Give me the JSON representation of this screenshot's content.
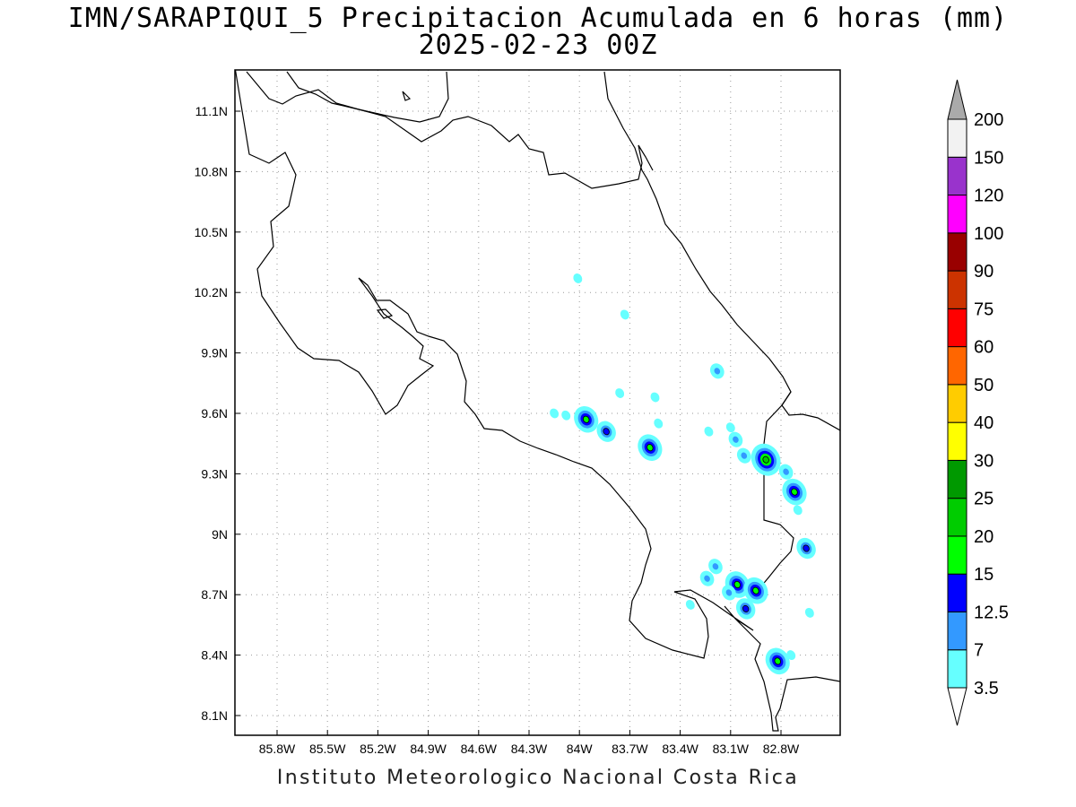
{
  "title": {
    "line1": "IMN/SARAPIQUI_5 Precipitacion Acumulada en 6 horas (mm)",
    "line2": "2025-02-23 00Z"
  },
  "footer": "Instituto Meteorologico Nacional Costa Rica",
  "map": {
    "lon_ticks": [
      "85.8W",
      "85.5W",
      "85.2W",
      "84.9W",
      "84.6W",
      "84.3W",
      "84W",
      "83.7W",
      "83.4W",
      "83.1W",
      "82.8W"
    ],
    "lat_ticks": [
      "11.1N",
      "10.8N",
      "10.5N",
      "10.2N",
      "9.9N",
      "9.6N",
      "9.3N",
      "9N",
      "8.7N",
      "8.4N",
      "8.1N"
    ],
    "gridlines": "dotted"
  },
  "colorbar": {
    "labels": [
      "3.5",
      "7",
      "12.5",
      "15",
      "20",
      "25",
      "30",
      "40",
      "50",
      "60",
      "75",
      "90",
      "100",
      "120",
      "150",
      "200"
    ],
    "colors": [
      "#ffffff",
      "#66ffff",
      "#3399ff",
      "#0000ff",
      "#00ff00",
      "#00cc00",
      "#009900",
      "#ffff00",
      "#ffcc00",
      "#ff6600",
      "#ff0000",
      "#cc3300",
      "#990000",
      "#ff00ff",
      "#9933cc",
      "#f2f2f2",
      "#aaaaaa"
    ]
  },
  "precip_cells": [
    {
      "lon": -84.01,
      "lat": 10.27,
      "level": 1
    },
    {
      "lon": -83.73,
      "lat": 10.09,
      "level": 1
    },
    {
      "lon": -83.76,
      "lat": 9.7,
      "level": 1
    },
    {
      "lon": -83.55,
      "lat": 9.68,
      "level": 1
    },
    {
      "lon": -84.15,
      "lat": 9.6,
      "level": 1
    },
    {
      "lon": -84.08,
      "lat": 9.59,
      "level": 1
    },
    {
      "lon": -83.96,
      "lat": 9.57,
      "level": 4
    },
    {
      "lon": -83.84,
      "lat": 9.51,
      "level": 3
    },
    {
      "lon": -83.58,
      "lat": 9.43,
      "level": 4
    },
    {
      "lon": -83.53,
      "lat": 9.55,
      "level": 1
    },
    {
      "lon": -83.23,
      "lat": 9.51,
      "level": 1
    },
    {
      "lon": -83.18,
      "lat": 9.81,
      "level": 2
    },
    {
      "lon": -83.1,
      "lat": 9.53,
      "level": 1
    },
    {
      "lon": -83.07,
      "lat": 9.47,
      "level": 2
    },
    {
      "lon": -83.02,
      "lat": 9.39,
      "level": 2
    },
    {
      "lon": -82.89,
      "lat": 9.37,
      "level": 5
    },
    {
      "lon": -82.77,
      "lat": 9.31,
      "level": 2
    },
    {
      "lon": -82.72,
      "lat": 9.21,
      "level": 4
    },
    {
      "lon": -82.7,
      "lat": 9.12,
      "level": 1
    },
    {
      "lon": -82.65,
      "lat": 8.93,
      "level": 3
    },
    {
      "lon": -83.19,
      "lat": 8.84,
      "level": 2
    },
    {
      "lon": -83.24,
      "lat": 8.78,
      "level": 2
    },
    {
      "lon": -83.06,
      "lat": 8.75,
      "level": 4
    },
    {
      "lon": -83.11,
      "lat": 8.71,
      "level": 2
    },
    {
      "lon": -82.95,
      "lat": 8.72,
      "level": 4
    },
    {
      "lon": -83.01,
      "lat": 8.63,
      "level": 3
    },
    {
      "lon": -82.82,
      "lat": 8.37,
      "level": 4
    },
    {
      "lon": -82.74,
      "lat": 8.4,
      "level": 1
    },
    {
      "lon": -82.63,
      "lat": 8.61,
      "level": 1
    },
    {
      "lon": -83.34,
      "lat": 8.65,
      "level": 1
    }
  ]
}
